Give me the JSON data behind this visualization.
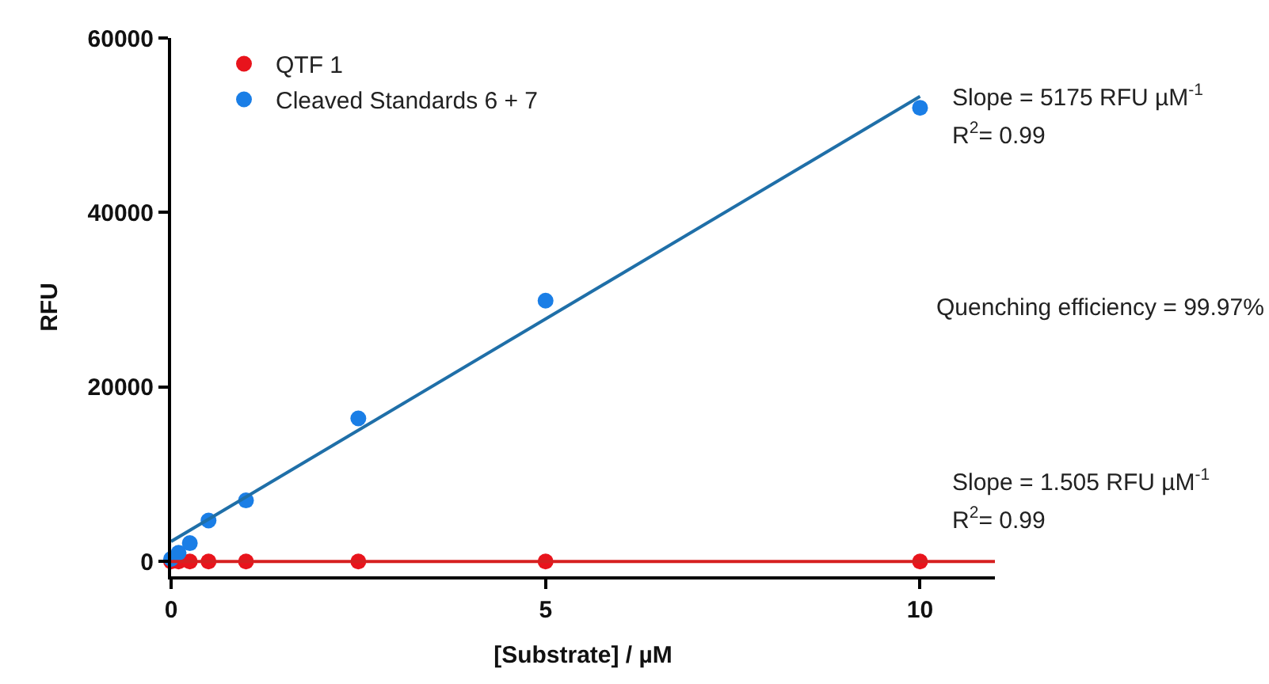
{
  "chart_data": {
    "type": "scatter",
    "xlabel": "[Substrate] / µM",
    "ylabel": "RFU",
    "xlim": [
      0,
      11
    ],
    "xticks": [
      0,
      5,
      10
    ],
    "ylim": [
      -1700,
      60000
    ],
    "yticks": [
      0,
      20000,
      40000,
      60000
    ],
    "legend": "top left",
    "marker": "circle",
    "series": [
      {
        "name": "QTF 1",
        "color": "#e8141c",
        "x": [
          0,
          0.1,
          0.25,
          0.5,
          1,
          2.5,
          5,
          10
        ],
        "values": [
          0,
          0,
          0,
          0,
          0,
          0,
          0,
          0
        ]
      },
      {
        "name": "Cleaved Standards 6 + 7",
        "color": "#1a7ee6",
        "x": [
          0,
          0.1,
          0.25,
          0.5,
          1,
          2.5,
          5,
          10
        ],
        "values": [
          300,
          1000,
          2100,
          4700,
          7000,
          16400,
          29900,
          52000
        ]
      },
      {
        "type": "line",
        "marker": "none",
        "color": "#d62020",
        "x": [
          0,
          11
        ],
        "values": [
          0,
          0
        ]
      },
      {
        "type": "line",
        "marker": "none",
        "color": "#1f6fa8",
        "x": [
          0,
          10
        ],
        "values": [
          2300,
          53300
        ]
      }
    ],
    "annotations": [
      "Slope = 5175 RFU µM$^{-1}$",
      "R$^{2}$= 0.99",
      "Quenching efficiency = 99.97%",
      "Slope = 1.505 RFU µM$^{-1}$",
      "R$^{2}$= 0.99"
    ]
  }
}
